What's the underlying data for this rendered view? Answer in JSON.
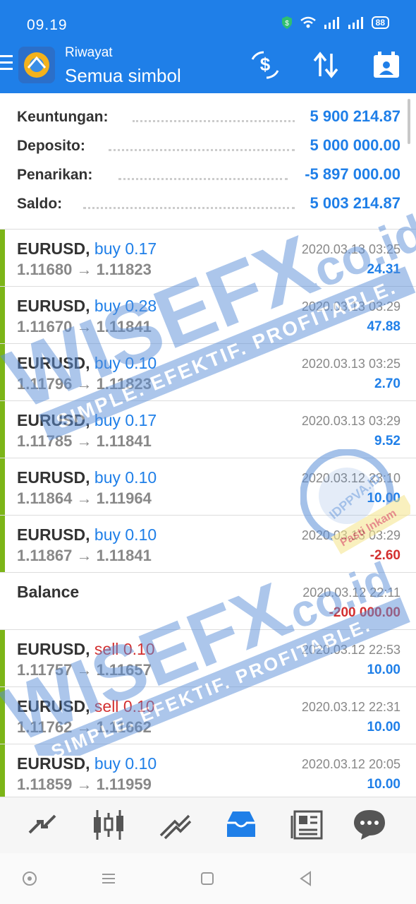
{
  "status": {
    "time": "09.19",
    "battery": "88"
  },
  "header": {
    "subtitle": "Riwayat",
    "title": "Semua simbol"
  },
  "summary": {
    "items": [
      {
        "label": "Keuntungan:",
        "value": "5 900 214.87"
      },
      {
        "label": "Deposito:",
        "value": "5 000 000.00"
      },
      {
        "label": "Penarikan:",
        "value": "-5 897 000.00"
      },
      {
        "label": "Saldo:",
        "value": "5 003 214.87"
      }
    ]
  },
  "trades": [
    {
      "symbol": "EURUSD,",
      "side": "buy",
      "volume": "0.17",
      "open": "1.11680",
      "close": "1.11823",
      "arrow": "→",
      "date": "2020.03.13 03:25",
      "profit": "24.31"
    },
    {
      "symbol": "EURUSD,",
      "side": "buy",
      "volume": "0.28",
      "open": "1.11670",
      "close": "1.11841",
      "arrow": "→",
      "date": "2020.03.13 03:29",
      "profit": "47.88"
    },
    {
      "symbol": "EURUSD,",
      "side": "buy",
      "volume": "0.10",
      "open": "1.11796",
      "close": "1.11823",
      "arrow": "→",
      "date": "2020.03.13 03:25",
      "profit": "2.70"
    },
    {
      "symbol": "EURUSD,",
      "side": "buy",
      "volume": "0.17",
      "open": "1.11785",
      "close": "1.11841",
      "arrow": "→",
      "date": "2020.03.13 03:29",
      "profit": "9.52"
    },
    {
      "symbol": "EURUSD,",
      "side": "buy",
      "volume": "0.10",
      "open": "1.11864",
      "close": "1.11964",
      "arrow": "→",
      "date": "2020.03.12 23:10",
      "profit": "10.00"
    },
    {
      "symbol": "EURUSD,",
      "side": "buy",
      "volume": "0.10",
      "open": "1.11867",
      "close": "1.11841",
      "arrow": "→",
      "date": "2020.03.13 03:29",
      "profit": "-2.60"
    }
  ],
  "balance": {
    "label": "Balance",
    "date": "2020.03.12 22:11",
    "amount": "-200 000.00"
  },
  "trades2": [
    {
      "symbol": "EURUSD,",
      "side": "sell",
      "volume": "0.10",
      "open": "1.11757",
      "close": "1.11657",
      "arrow": "→",
      "date": "2020.03.12 22:53",
      "profit": "10.00"
    },
    {
      "symbol": "EURUSD,",
      "side": "sell",
      "volume": "0.10",
      "open": "1.11762",
      "close": "1.11662",
      "arrow": "→",
      "date": "2020.03.12 22:31",
      "profit": "10.00"
    },
    {
      "symbol": "EURUSD,",
      "side": "buy",
      "volume": "0.10",
      "open": "1.11859",
      "close": "1.11959",
      "arrow": "→",
      "date": "2020.03.12 20:05",
      "profit": "10.00"
    }
  ],
  "watermark": {
    "brand": "WISEFX",
    "domain": ".co.id",
    "tagline": "SIMPLE. EFEKTIF. PROFITABLE.",
    "seal": "IDPPVA.ID",
    "seal_tag": "Pasti Inkam"
  },
  "colors": {
    "accent": "#1f7fe8",
    "buy": "#1f7fe8",
    "sell": "#d32f2f",
    "profit_bar": "#7cb518"
  }
}
